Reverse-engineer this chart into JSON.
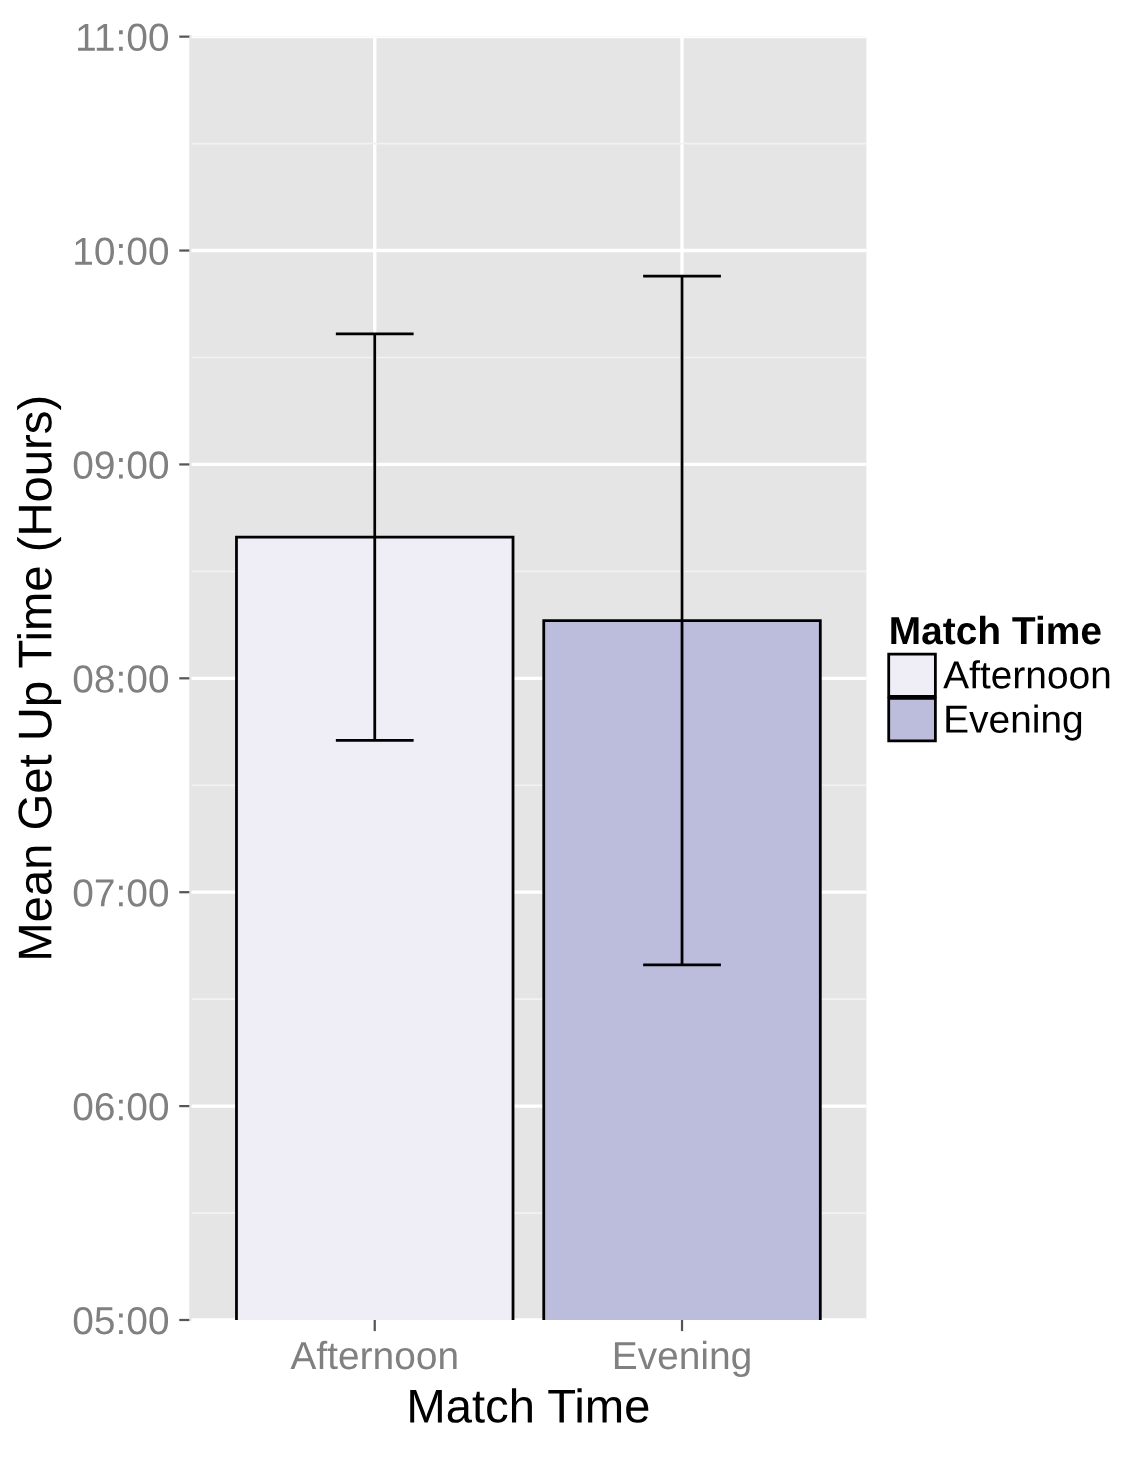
{
  "chart_data": {
    "type": "bar",
    "xlabel": "Match Time",
    "ylabel": "Mean Get Up Time (Hours)",
    "legend_title": "Match Time",
    "categories": [
      "Afternoon",
      "Evening"
    ],
    "series": [
      {
        "name": "Afternoon",
        "color": "#efedf5",
        "values": [
          8.66,
          null
        ],
        "errors": [
          0.95,
          null
        ]
      },
      {
        "name": "Evening",
        "color": "#bcbddc",
        "values": [
          null,
          8.27
        ],
        "errors": [
          null,
          1.61
        ]
      }
    ],
    "ylim": [
      5,
      11
    ],
    "yticks": [
      {
        "value": 5,
        "label": "05:00"
      },
      {
        "value": 6,
        "label": "06:00"
      },
      {
        "value": 7,
        "label": "07:00"
      },
      {
        "value": 8,
        "label": "08:00"
      },
      {
        "value": 9,
        "label": "09:00"
      },
      {
        "value": 10,
        "label": "10:00"
      },
      {
        "value": 11,
        "label": "11:00"
      }
    ],
    "grid": true,
    "legend": "right"
  }
}
